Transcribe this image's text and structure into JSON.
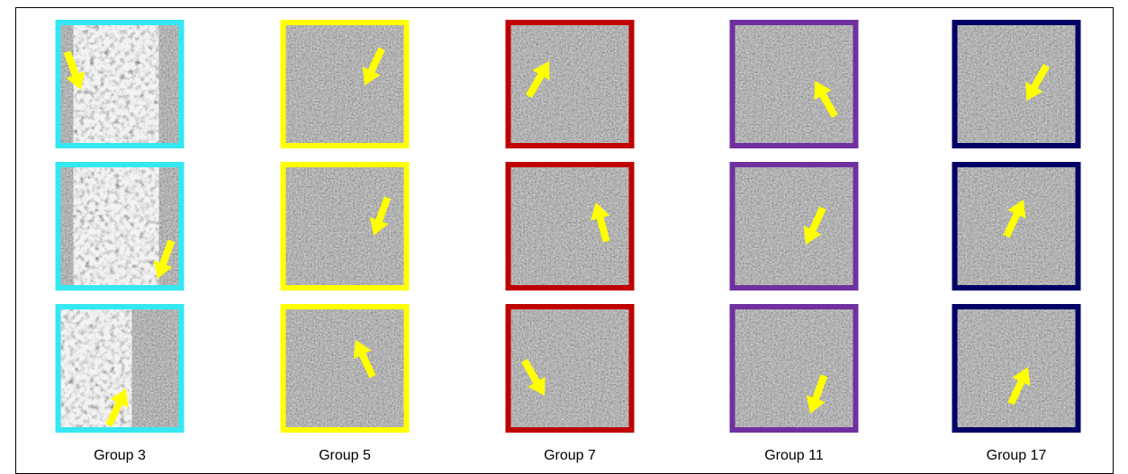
{
  "groups": [
    {
      "label": "Group 3"
    },
    {
      "label": "Group 5"
    },
    {
      "label": "Group 7"
    },
    {
      "label": "Group 11"
    },
    {
      "label": "Group 17"
    }
  ]
}
